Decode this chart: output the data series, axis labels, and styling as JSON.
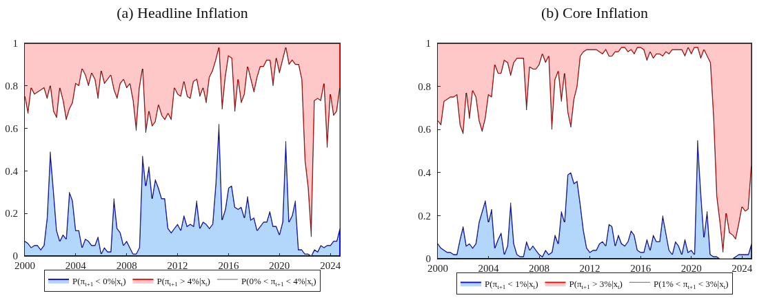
{
  "chart_data": [
    {
      "type": "area",
      "title": "(a) Headline Inflation",
      "stacked": true,
      "legend": "bottom",
      "xlim": [
        2000,
        2024.75
      ],
      "xticks": [
        2000,
        2004,
        2008,
        2012,
        2016,
        2020,
        2024
      ],
      "ylim": [
        0,
        1
      ],
      "yticks": [
        0,
        0.2,
        0.4,
        0.6,
        0.8,
        1
      ],
      "x": [
        2000,
        2000.25,
        2000.5,
        2000.75,
        2001,
        2001.25,
        2001.5,
        2001.75,
        2002,
        2002.25,
        2002.5,
        2002.75,
        2003,
        2003.25,
        2003.5,
        2003.75,
        2004,
        2004.25,
        2004.5,
        2004.75,
        2005,
        2005.25,
        2005.5,
        2005.75,
        2006,
        2006.25,
        2006.5,
        2006.75,
        2007,
        2007.25,
        2007.5,
        2007.75,
        2008,
        2008.25,
        2008.5,
        2008.75,
        2009,
        2009.25,
        2009.5,
        2009.75,
        2010,
        2010.25,
        2010.5,
        2010.75,
        2011,
        2011.25,
        2011.5,
        2011.75,
        2012,
        2012.25,
        2012.5,
        2012.75,
        2013,
        2013.25,
        2013.5,
        2013.75,
        2014,
        2014.25,
        2014.5,
        2014.75,
        2015,
        2015.25,
        2015.5,
        2015.75,
        2016,
        2016.25,
        2016.5,
        2016.75,
        2017,
        2017.25,
        2017.5,
        2017.75,
        2018,
        2018.25,
        2018.5,
        2018.75,
        2019,
        2019.25,
        2019.5,
        2019.75,
        2020,
        2020.25,
        2020.5,
        2020.75,
        2021,
        2021.25,
        2021.5,
        2021.75,
        2022,
        2022.25,
        2022.5,
        2022.75,
        2023,
        2023.25,
        2023.5,
        2023.75,
        2024,
        2024.25,
        2024.5,
        2024.75
      ],
      "series": [
        {
          "name": "P(π$_{t+1}$ < 0%|x$_{t}$)",
          "color": "#b3d7fb",
          "values": [
            0.07,
            0.06,
            0.04,
            0.05,
            0.05,
            0.03,
            0.05,
            0.18,
            0.49,
            0.31,
            0.12,
            0.07,
            0.1,
            0.08,
            0.3,
            0.26,
            0.12,
            0.12,
            0.04,
            0.08,
            0.07,
            0.05,
            0.05,
            0.09,
            0.01,
            0.04,
            0.02,
            0.02,
            0.27,
            0.13,
            0.11,
            0.05,
            0.07,
            0.04,
            0.01,
            0.01,
            0.04,
            0.47,
            0.33,
            0.42,
            0.27,
            0.36,
            0.32,
            0.27,
            0.27,
            0.13,
            0.11,
            0.13,
            0.15,
            0.12,
            0.19,
            0.14,
            0.15,
            0.14,
            0.26,
            0.13,
            0.16,
            0.15,
            0.13,
            0.15,
            0.34,
            0.62,
            0.17,
            0.22,
            0.32,
            0.33,
            0.23,
            0.22,
            0.23,
            0.18,
            0.28,
            0.17,
            0.18,
            0.12,
            0.14,
            0.16,
            0.16,
            0.21,
            0.14,
            0.14,
            0.1,
            0.16,
            0.54,
            0.16,
            0.19,
            0.26,
            0.03,
            0.03,
            0.01,
            0.01,
            0.0,
            0.03,
            0.02,
            0.05,
            0.04,
            0.05,
            0.05,
            0.07,
            0.07,
            0.13
          ]
        },
        {
          "name": "P(0% < π$_{t+1}$ < 4%|x$_{t}$)",
          "color": "#ffffff",
          "values": [
            0.68,
            0.61,
            0.75,
            0.71,
            0.72,
            0.75,
            0.74,
            0.56,
            0.31,
            0.37,
            0.53,
            0.72,
            0.63,
            0.56,
            0.39,
            0.46,
            0.69,
            0.68,
            0.84,
            0.77,
            0.73,
            0.81,
            0.78,
            0.65,
            0.86,
            0.77,
            0.81,
            0.83,
            0.51,
            0.61,
            0.7,
            0.78,
            0.72,
            0.77,
            0.72,
            0.58,
            0.75,
            0.41,
            0.25,
            0.26,
            0.34,
            0.27,
            0.39,
            0.39,
            0.37,
            0.54,
            0.53,
            0.66,
            0.61,
            0.63,
            0.63,
            0.61,
            0.59,
            0.68,
            0.57,
            0.62,
            0.63,
            0.57,
            0.71,
            0.72,
            0.58,
            0.36,
            0.52,
            0.62,
            0.62,
            0.6,
            0.45,
            0.61,
            0.49,
            0.58,
            0.61,
            0.66,
            0.59,
            0.72,
            0.75,
            0.73,
            0.76,
            0.71,
            0.66,
            0.79,
            0.76,
            0.76,
            0.44,
            0.74,
            0.73,
            0.64,
            0.87,
            0.8,
            0.44,
            0.31,
            0.09,
            0.7,
            0.72,
            0.68,
            0.77,
            0.46,
            0.71,
            0.59,
            0.61,
            0.66
          ]
        },
        {
          "name": "P(π$_{t+1}$ > 4%|x$_{t}$)",
          "color": "#ffc8c8",
          "values": [
            0.25,
            0.33,
            0.21,
            0.24,
            0.23,
            0.22,
            0.21,
            0.26,
            0.2,
            0.32,
            0.35,
            0.21,
            0.27,
            0.36,
            0.31,
            0.28,
            0.19,
            0.2,
            0.12,
            0.15,
            0.2,
            0.14,
            0.17,
            0.26,
            0.13,
            0.19,
            0.17,
            0.15,
            0.22,
            0.26,
            0.19,
            0.17,
            0.21,
            0.19,
            0.27,
            0.41,
            0.21,
            0.12,
            0.42,
            0.32,
            0.39,
            0.37,
            0.29,
            0.34,
            0.36,
            0.33,
            0.36,
            0.21,
            0.24,
            0.25,
            0.18,
            0.25,
            0.26,
            0.18,
            0.17,
            0.25,
            0.21,
            0.28,
            0.16,
            0.13,
            0.08,
            0.02,
            0.31,
            0.16,
            0.06,
            0.07,
            0.32,
            0.17,
            0.28,
            0.24,
            0.11,
            0.17,
            0.23,
            0.16,
            0.11,
            0.11,
            0.08,
            0.08,
            0.2,
            0.07,
            0.14,
            0.08,
            0.02,
            0.1,
            0.08,
            0.1,
            0.1,
            0.17,
            0.55,
            0.68,
            0.91,
            0.27,
            0.26,
            0.27,
            0.19,
            0.49,
            0.24,
            0.34,
            0.32,
            0.21
          ]
        }
      ]
    },
    {
      "type": "area",
      "title": "(b) Core Inflation",
      "stacked": true,
      "legend": "bottom",
      "xlim": [
        2000,
        2024.75
      ],
      "xticks": [
        2000,
        2004,
        2008,
        2012,
        2016,
        2020,
        2024
      ],
      "ylim": [
        0,
        1
      ],
      "yticks": [
        0,
        0.2,
        0.4,
        0.6,
        0.8,
        1
      ],
      "x": [
        2000,
        2000.25,
        2000.5,
        2000.75,
        2001,
        2001.25,
        2001.5,
        2001.75,
        2002,
        2002.25,
        2002.5,
        2002.75,
        2003,
        2003.25,
        2003.5,
        2003.75,
        2004,
        2004.25,
        2004.5,
        2004.75,
        2005,
        2005.25,
        2005.5,
        2005.75,
        2006,
        2006.25,
        2006.5,
        2006.75,
        2007,
        2007.25,
        2007.5,
        2007.75,
        2008,
        2008.25,
        2008.5,
        2008.75,
        2009,
        2009.25,
        2009.5,
        2009.75,
        2010,
        2010.25,
        2010.5,
        2010.75,
        2011,
        2011.25,
        2011.5,
        2011.75,
        2012,
        2012.25,
        2012.5,
        2012.75,
        2013,
        2013.25,
        2013.5,
        2013.75,
        2014,
        2014.25,
        2014.5,
        2014.75,
        2015,
        2015.25,
        2015.5,
        2015.75,
        2016,
        2016.25,
        2016.5,
        2016.75,
        2017,
        2017.25,
        2017.5,
        2017.75,
        2018,
        2018.25,
        2018.5,
        2018.75,
        2019,
        2019.25,
        2019.5,
        2019.75,
        2020,
        2020.25,
        2020.5,
        2020.75,
        2021,
        2021.25,
        2021.5,
        2021.75,
        2022,
        2022.25,
        2022.5,
        2022.75,
        2023,
        2023.25,
        2023.5,
        2023.75,
        2024,
        2024.25,
        2024.5,
        2024.75
      ],
      "series": [
        {
          "name": "P(π$_{t+1}$ < 1%|x$_{t}$)",
          "color": "#b3d7fb",
          "values": [
            0.07,
            0.05,
            0.04,
            0.03,
            0.03,
            0.02,
            0.02,
            0.09,
            0.15,
            0.06,
            0.07,
            0.05,
            0.07,
            0.17,
            0.22,
            0.27,
            0.17,
            0.23,
            0.05,
            0.09,
            0.12,
            0.02,
            0.06,
            0.26,
            0.07,
            0.02,
            0.01,
            0.01,
            0.08,
            0.04,
            0.06,
            0.04,
            0.02,
            0.01,
            0.04,
            0.02,
            0.03,
            0.11,
            0.07,
            0.22,
            0.17,
            0.39,
            0.4,
            0.35,
            0.36,
            0.25,
            0.13,
            0.05,
            0.03,
            0.04,
            0.04,
            0.07,
            0.08,
            0.06,
            0.16,
            0.15,
            0.06,
            0.11,
            0.07,
            0.06,
            0.08,
            0.13,
            0.11,
            0.04,
            0.03,
            0.03,
            0.09,
            0.04,
            0.11,
            0.08,
            0.08,
            0.2,
            0.12,
            0.04,
            0.02,
            0.08,
            0.06,
            0.02,
            0.09,
            0.03,
            0.04,
            0.02,
            0.55,
            0.31,
            0.1,
            0.22,
            0.02,
            0.01,
            0.01,
            0.0,
            0.0,
            0.0,
            0.0,
            0.0,
            0.01,
            0.02,
            0.02,
            0.02,
            0.02,
            0.07
          ]
        },
        {
          "name": "P(1% < π$_{t+1}$ < 3%|x$_{t}$)",
          "color": "#ffffff",
          "values": [
            0.57,
            0.57,
            0.69,
            0.71,
            0.72,
            0.73,
            0.74,
            0.53,
            0.43,
            0.71,
            0.58,
            0.73,
            0.68,
            0.47,
            0.37,
            0.38,
            0.59,
            0.52,
            0.85,
            0.77,
            0.74,
            0.9,
            0.85,
            0.59,
            0.84,
            0.91,
            0.92,
            0.92,
            0.61,
            0.85,
            0.82,
            0.84,
            0.88,
            0.94,
            0.87,
            0.92,
            0.57,
            0.72,
            0.8,
            0.51,
            0.69,
            0.29,
            0.21,
            0.39,
            0.44,
            0.69,
            0.83,
            0.92,
            0.94,
            0.93,
            0.93,
            0.89,
            0.87,
            0.91,
            0.78,
            0.79,
            0.9,
            0.85,
            0.91,
            0.92,
            0.88,
            0.84,
            0.84,
            0.94,
            0.95,
            0.94,
            0.83,
            0.92,
            0.82,
            0.87,
            0.87,
            0.74,
            0.84,
            0.91,
            0.95,
            0.89,
            0.91,
            0.95,
            0.85,
            0.95,
            0.91,
            0.96,
            0.43,
            0.62,
            0.87,
            0.72,
            0.89,
            0.65,
            0.28,
            0.17,
            0.03,
            0.21,
            0.12,
            0.11,
            0.08,
            0.14,
            0.22,
            0.2,
            0.21,
            0.36
          ]
        },
        {
          "name": "P(π$_{t+1}$ > 3%|x$_{t}$)",
          "color": "#ffc8c8",
          "values": [
            0.36,
            0.38,
            0.27,
            0.26,
            0.25,
            0.25,
            0.24,
            0.38,
            0.42,
            0.23,
            0.35,
            0.22,
            0.25,
            0.36,
            0.41,
            0.35,
            0.24,
            0.25,
            0.1,
            0.14,
            0.14,
            0.08,
            0.09,
            0.15,
            0.09,
            0.07,
            0.07,
            0.07,
            0.31,
            0.11,
            0.12,
            0.12,
            0.1,
            0.05,
            0.09,
            0.06,
            0.4,
            0.17,
            0.13,
            0.27,
            0.14,
            0.32,
            0.39,
            0.26,
            0.2,
            0.06,
            0.04,
            0.03,
            0.03,
            0.03,
            0.03,
            0.04,
            0.05,
            0.03,
            0.06,
            0.06,
            0.04,
            0.04,
            0.02,
            0.02,
            0.04,
            0.03,
            0.05,
            0.02,
            0.02,
            0.03,
            0.08,
            0.04,
            0.07,
            0.05,
            0.05,
            0.06,
            0.04,
            0.05,
            0.03,
            0.03,
            0.03,
            0.03,
            0.06,
            0.02,
            0.05,
            0.02,
            0.02,
            0.07,
            0.03,
            0.06,
            0.09,
            0.34,
            0.71,
            0.83,
            0.97,
            0.79,
            0.88,
            0.89,
            0.91,
            0.84,
            0.76,
            0.78,
            0.77,
            0.57
          ]
        }
      ]
    }
  ]
}
